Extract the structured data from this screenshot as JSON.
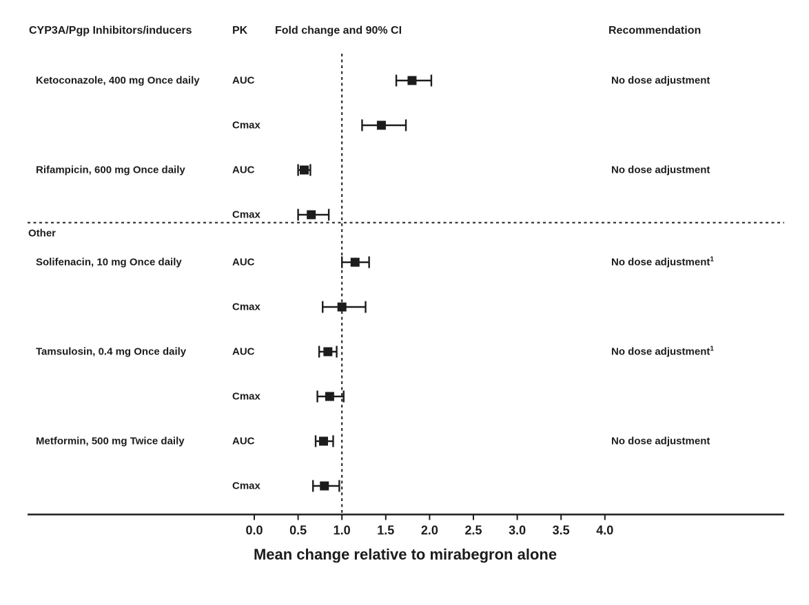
{
  "figure": {
    "columns": {
      "drugs": "CYP3A/Pgp Inhibitors/inducers",
      "pk": "PK",
      "plot": "Fold change and 90% CI",
      "recommendation": "Recommendation"
    }
  },
  "chart_data": {
    "type": "forest",
    "title": "Fold change and 90% CI",
    "xlabel": "Mean change relative to mirabegron alone",
    "x_ticks": [
      0.0,
      0.5,
      1.0,
      1.5,
      2.0,
      2.5,
      3.0,
      3.5,
      4.0
    ],
    "x_tick_labels": [
      "0.0",
      "0.5",
      "1.0",
      "1.5",
      "2.0",
      "2.5",
      "3.0",
      "3.5",
      "4.0"
    ],
    "x_range": [
      0.0,
      4.0
    ],
    "reference_line": 1.0,
    "ci_level": "90%",
    "marker": "filled-square",
    "grid": false,
    "sections": [
      {
        "label": "",
        "groups": [
          {
            "drug": "Ketoconazole, 400 mg Once daily",
            "recommendation": "No dose adjustment",
            "footnote_marker": "",
            "rows": [
              {
                "pk": "AUC",
                "fold_change": 1.8,
                "ci90_low": 1.62,
                "ci90_high": 2.02
              },
              {
                "pk": "Cmax",
                "fold_change": 1.45,
                "ci90_low": 1.23,
                "ci90_high": 1.73
              }
            ]
          },
          {
            "drug": "Rifampicin, 600 mg Once daily",
            "recommendation": "No dose adjustment",
            "footnote_marker": "",
            "rows": [
              {
                "pk": "AUC",
                "fold_change": 0.57,
                "ci90_low": 0.5,
                "ci90_high": 0.64
              },
              {
                "pk": "Cmax",
                "fold_change": 0.65,
                "ci90_low": 0.5,
                "ci90_high": 0.85
              }
            ]
          }
        ]
      },
      {
        "label": "Other",
        "groups": [
          {
            "drug": "Solifenacin, 10 mg Once daily",
            "recommendation": "No dose adjustment",
            "footnote_marker": "1",
            "rows": [
              {
                "pk": "AUC",
                "fold_change": 1.15,
                "ci90_low": 1.0,
                "ci90_high": 1.31
              },
              {
                "pk": "Cmax",
                "fold_change": 1.0,
                "ci90_low": 0.78,
                "ci90_high": 1.27
              }
            ]
          },
          {
            "drug": "Tamsulosin, 0.4 mg Once daily",
            "recommendation": "No dose adjustment",
            "footnote_marker": "1",
            "rows": [
              {
                "pk": "AUC",
                "fold_change": 0.84,
                "ci90_low": 0.74,
                "ci90_high": 0.94
              },
              {
                "pk": "Cmax",
                "fold_change": 0.86,
                "ci90_low": 0.72,
                "ci90_high": 1.02
              }
            ]
          },
          {
            "drug": "Metformin, 500 mg Twice daily",
            "recommendation": "No dose adjustment",
            "footnote_marker": "",
            "rows": [
              {
                "pk": "AUC",
                "fold_change": 0.79,
                "ci90_low": 0.7,
                "ci90_high": 0.9
              },
              {
                "pk": "Cmax",
                "fold_change": 0.8,
                "ci90_low": 0.67,
                "ci90_high": 0.97
              }
            ]
          }
        ]
      }
    ]
  },
  "colors": {
    "text": "#1c1c1c",
    "line": "#1c1c1c",
    "background": "#ffffff"
  }
}
